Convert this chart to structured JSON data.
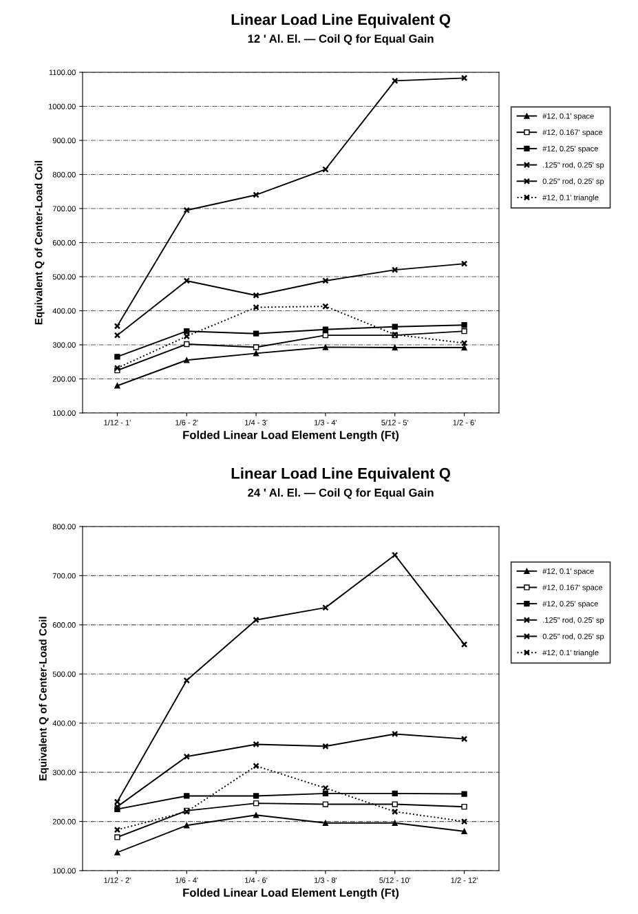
{
  "chart_data": [
    {
      "type": "line",
      "title": "Linear Load Line Equivalent Q",
      "subtitle": "12 ' Al. El. — Coil Q for Equal Gain",
      "xlabel": "Folded Linear Load Element Length (Ft)",
      "ylabel": "Equivalent Q of Center-Load Coil",
      "categories": [
        "1/12 - 1'",
        "1/6 - 2'",
        "1/4 - 3'",
        "1/3 - 4'",
        "5/12 - 5'",
        "1/2 - 6'"
      ],
      "ylim": [
        100,
        1100
      ],
      "yticks": [
        {
          "value": 100,
          "label": "100.00"
        },
        {
          "value": 200,
          "label": "200.00"
        },
        {
          "value": 300,
          "label": "300.00"
        },
        {
          "value": 400,
          "label": "400.00"
        },
        {
          "value": 500,
          "label": "500.00"
        },
        {
          "value": 600,
          "label": "600.00"
        },
        {
          "value": 700,
          "label": "700.00"
        },
        {
          "value": 800,
          "label": "800.00"
        },
        {
          "value": 900,
          "label": "900.00"
        },
        {
          "value": 1000,
          "label": "1000.00"
        },
        {
          "value": 1100,
          "label": "1100.00"
        }
      ],
      "grid": "y",
      "legend": "right",
      "series": [
        {
          "name": "#12, 0.1' space",
          "color": "#000000",
          "marker": "triangle",
          "line_style": "solid",
          "values": [
            180,
            255,
            275,
            293,
            292,
            292
          ]
        },
        {
          "name": "#12, 0.167' space",
          "color": "#000000",
          "marker": "square",
          "line_style": "solid",
          "values": [
            225,
            302,
            293,
            328,
            328,
            340
          ]
        },
        {
          "name": "#12, 0.25' space",
          "color": "#000000",
          "marker": "square",
          "line_style": "solid",
          "values": [
            265,
            340,
            333,
            345,
            353,
            358
          ]
        },
        {
          "name": ".125\" rod, 0.25' sp",
          "color": "#000000",
          "marker": "cross",
          "line_style": "solid",
          "values": [
            355,
            695,
            740,
            815,
            1075,
            1083
          ]
        },
        {
          "name": "0.25\" rod, 0.25' sp",
          "color": "#000000",
          "marker": "cross",
          "line_style": "solid",
          "values": [
            328,
            488,
            445,
            488,
            520,
            538
          ]
        },
        {
          "name": "#12, 0.1' triangle",
          "color": "#000000",
          "marker": "cross",
          "line_style": "dotted",
          "values": [
            232,
            325,
            410,
            413,
            330,
            305
          ]
        }
      ]
    },
    {
      "type": "line",
      "title": "Linear Load Line Equivalent Q",
      "subtitle": "24 ' Al. El. — Coil Q for Equal Gain",
      "xlabel": "Folded Linear Load Element Length (Ft)",
      "ylabel": "Equivalent Q of Center-Load Coil",
      "categories": [
        "1/12 - 2'",
        "1/6 - 4'",
        "1/4 - 6'",
        "1/3 - 8'",
        "5/12 - 10'",
        "1/2 - 12'"
      ],
      "ylim": [
        100,
        800
      ],
      "yticks": [
        {
          "value": 100,
          "label": "100.00"
        },
        {
          "value": 200,
          "label": "200.00"
        },
        {
          "value": 300,
          "label": "300.00"
        },
        {
          "value": 400,
          "label": "400.00"
        },
        {
          "value": 500,
          "label": "500.00"
        },
        {
          "value": 600,
          "label": "600.00"
        },
        {
          "value": 700,
          "label": "700.00"
        },
        {
          "value": 800,
          "label": "800.00"
        }
      ],
      "grid": "y",
      "legend": "right",
      "series": [
        {
          "name": "#12, 0.1' space",
          "color": "#000000",
          "marker": "triangle",
          "line_style": "solid",
          "values": [
            137,
            192,
            213,
            197,
            197,
            180
          ]
        },
        {
          "name": "#12, 0.167' space",
          "color": "#000000",
          "marker": "square",
          "line_style": "solid",
          "values": [
            168,
            222,
            237,
            235,
            235,
            230
          ]
        },
        {
          "name": "#12, 0.25' space",
          "color": "#000000",
          "marker": "square",
          "line_style": "solid",
          "values": [
            225,
            252,
            252,
            257,
            257,
            256
          ]
        },
        {
          "name": ".125\" rod, 0.25' sp",
          "color": "#000000",
          "marker": "cross",
          "line_style": "solid",
          "values": [
            240,
            487,
            610,
            635,
            742,
            560
          ]
        },
        {
          "name": "0.25\" rod, 0.25' sp",
          "color": "#000000",
          "marker": "cross",
          "line_style": "solid",
          "values": [
            230,
            332,
            357,
            353,
            378,
            368
          ]
        },
        {
          "name": "#12, 0.1' triangle",
          "color": "#000000",
          "marker": "cross",
          "line_style": "dotted",
          "values": [
            183,
            220,
            313,
            268,
            220,
            200
          ]
        }
      ]
    }
  ]
}
